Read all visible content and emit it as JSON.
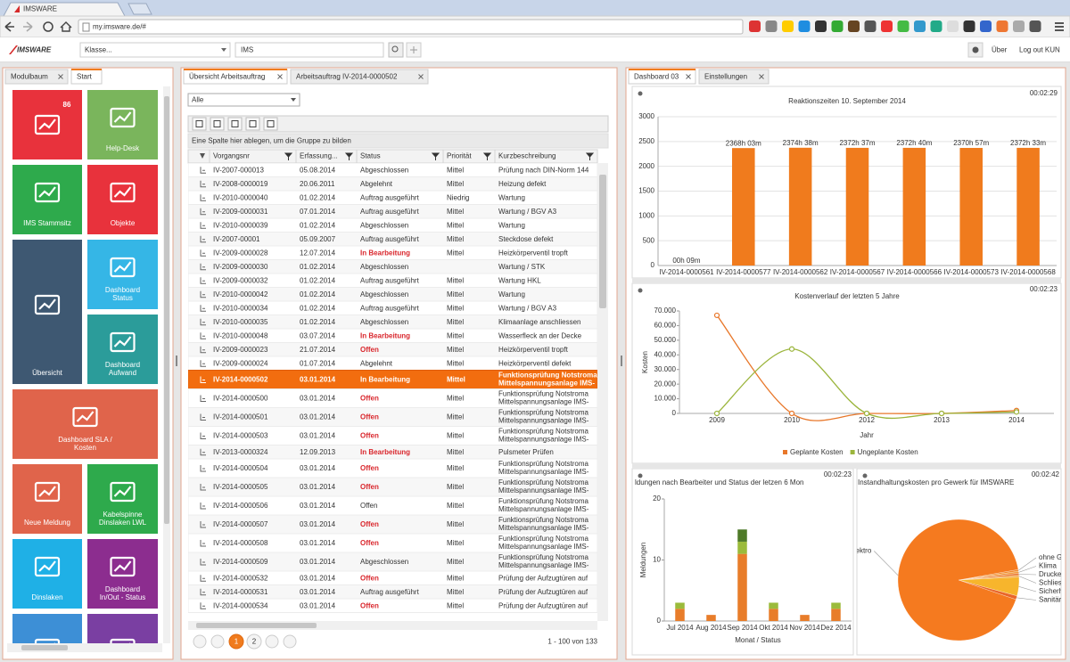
{
  "browser": {
    "tab": "IMSWARE",
    "url": "my.imsware.de/#"
  },
  "app": {
    "logo": "IMSWARE",
    "class_placeholder": "Klasse...",
    "search": "IMS",
    "about": "Über",
    "logout": "Log out KUN"
  },
  "left_panel": {
    "tabs": [
      "Modulbaum",
      "Start"
    ],
    "tiles": [
      {
        "lines": [],
        "badge": 86,
        "color": "#e8323c"
      },
      {
        "lines": [
          "Help-Desk"
        ],
        "color": "#7ab55c"
      },
      {
        "lines": [
          "IMS Stammsitz"
        ],
        "color": "#2eaa4c"
      },
      {
        "lines": [
          "Objekte"
        ],
        "color": "#e8323c"
      },
      {
        "lines": [
          "Übersicht"
        ],
        "color": "#3e5872"
      },
      {
        "lines": [
          "Dashboard",
          "Status"
        ],
        "color": "#35b6e6"
      },
      {
        "lines": [
          "Dashboard",
          "Aufwand"
        ],
        "color": "#2b9c9a"
      },
      {
        "lines": [
          "Dashboard SLA /",
          "Kosten"
        ],
        "color": "#e0644b"
      },
      {
        "lines": [
          "Neue Meldung"
        ],
        "color": "#e0644b"
      },
      {
        "lines": [
          "Kabelspinne",
          "Dinslaken LWL"
        ],
        "color": "#2eaa4c"
      },
      {
        "lines": [
          "Dinslaken"
        ],
        "color": "#1fb0e6"
      },
      {
        "lines": [
          "Dashboard",
          "In/Out - Status"
        ],
        "color": "#8c2d8f"
      },
      {
        "lines": [],
        "color": "#3d8fd6"
      },
      {
        "lines": [],
        "color": "#7a3fa2"
      }
    ]
  },
  "middle_panel": {
    "tabs": [
      "Übersicht Arbeitsauftrag",
      "Arbeitsauftrag IV-2014-0000502"
    ],
    "filter": "Alle",
    "group_hint": "Eine Spalte hier ablegen, um die Gruppe zu bilden",
    "table": {
      "columns": [
        "Vorgangsnr",
        "Erfassung...",
        "Status",
        "Priorität",
        "Kurzbeschreibung"
      ],
      "selected_row": 15,
      "rows": [
        [
          "IV-2007-000013",
          "05.08.2014",
          "Abgeschlossen",
          "Mittel",
          [
            "Prüfung nach DIN-Norm 144"
          ],
          false
        ],
        [
          "IV-2008-0000019",
          "20.06.2011",
          "Abgelehnt",
          "Mittel",
          [
            "Heizung defekt"
          ],
          false
        ],
        [
          "IV-2010-0000040",
          "01.02.2014",
          "Auftrag ausgeführt",
          "Niedrig",
          [
            "Wartung"
          ],
          false
        ],
        [
          "IV-2009-0000031",
          "07.01.2014",
          "Auftrag ausgeführt",
          "Mittel",
          [
            "Wartung / BGV A3"
          ],
          false
        ],
        [
          "IV-2010-0000039",
          "01.02.2014",
          "Abgeschlossen",
          "Mittel",
          [
            "Wartung"
          ],
          false
        ],
        [
          "IV-2007-00001",
          "05.09.2007",
          "Auftrag ausgeführt",
          "Mittel",
          [
            "Steckdose defekt"
          ],
          false
        ],
        [
          "IV-2009-0000028",
          "12.07.2014",
          "In Bearbeitung",
          "Mittel",
          [
            "Heizkörperventil tropft"
          ],
          true
        ],
        [
          "IV-2009-0000030",
          "01.02.2014",
          "Abgeschlossen",
          null,
          [
            "Wartung / STK"
          ],
          false
        ],
        [
          "IV-2009-0000032",
          "01.02.2014",
          "Auftrag ausgeführt",
          "Mittel",
          [
            "Wartung HKL"
          ],
          false
        ],
        [
          "IV-2010-0000042",
          "01.02.2014",
          "Abgeschlossen",
          "Mittel",
          [
            "Wartung"
          ],
          false
        ],
        [
          "IV-2010-0000034",
          "01.02.2014",
          "Auftrag ausgeführt",
          "Mittel",
          [
            "Wartung / BGV A3"
          ],
          false
        ],
        [
          "IV-2010-0000035",
          "01.02.2014",
          "Abgeschlossen",
          "Mittel",
          [
            "Klimaanlage anschliessen"
          ],
          false
        ],
        [
          "IV-2010-0000048",
          "03.07.2014",
          "In Bearbeitung",
          "Mittel",
          [
            "Wasserfleck an der Decke"
          ],
          true
        ],
        [
          "IV-2009-0000023",
          "21.07.2014",
          "Offen",
          "Mittel",
          [
            "Heizkörperventil tropft"
          ],
          true
        ],
        [
          "IV-2009-0000024",
          "01.07.2014",
          "Abgelehnt",
          "Mittel",
          [
            "Heizkörperventil defekt"
          ],
          false
        ],
        [
          "IV-2014-0000502",
          "03.01.2014",
          "In Bearbeitung",
          "Mittel",
          [
            "Funktionsprüfung Notstroma",
            "Mittelspannungsanlage IMS-"
          ],
          true
        ],
        [
          "IV-2014-0000500",
          "03.01.2014",
          "Offen",
          "Mittel",
          [
            "Funktionsprüfung Notstroma",
            "Mittelspannungsanlage IMS-"
          ],
          true
        ],
        [
          "IV-2014-0000501",
          "03.01.2014",
          "Offen",
          "Mittel",
          [
            "Funktionsprüfung Notstroma",
            "Mittelspannungsanlage IMS-"
          ],
          true
        ],
        [
          "IV-2014-0000503",
          "03.01.2014",
          "Offen",
          "Mittel",
          [
            "Funktionsprüfung Notstroma",
            "Mittelspannungsanlage IMS-"
          ],
          true
        ],
        [
          "IV-2013-0000324",
          "12.09.2013",
          "In Bearbeitung",
          "Mittel",
          [
            "Pulsmeter Prüfen"
          ],
          true
        ],
        [
          "IV-2014-0000504",
          "03.01.2014",
          "Offen",
          "Mittel",
          [
            "Funktionsprüfung Notstroma",
            "Mittelspannungsanlage IMS-"
          ],
          true
        ],
        [
          "IV-2014-0000505",
          "03.01.2014",
          "Offen",
          "Mittel",
          [
            "Funktionsprüfung Notstroma",
            "Mittelspannungsanlage IMS-"
          ],
          true
        ],
        [
          "IV-2014-0000506",
          "03.01.2014",
          "Offen",
          "Mittel",
          [
            "Funktionsprüfung Notstroma",
            "Mittelspannungsanlage IMS-"
          ],
          false
        ],
        [
          "IV-2014-0000507",
          "03.01.2014",
          "Offen",
          "Mittel",
          [
            "Funktionsprüfung Notstroma",
            "Mittelspannungsanlage IMS-"
          ],
          true
        ],
        [
          "IV-2014-0000508",
          "03.01.2014",
          "Offen",
          "Mittel",
          [
            "Funktionsprüfung Notstroma",
            "Mittelspannungsanlage IMS-"
          ],
          true
        ],
        [
          "IV-2014-0000509",
          "03.01.2014",
          "Abgeschlossen",
          "Mittel",
          [
            "Funktionsprüfung Notstroma",
            "Mittelspannungsanlage IMS-"
          ],
          false
        ],
        [
          "IV-2014-0000532",
          "03.01.2014",
          "Offen",
          "Mittel",
          [
            "Prüfung der Aufzugtüren auf"
          ],
          true
        ],
        [
          "IV-2014-0000531",
          "03.01.2014",
          "Auftrag ausgeführt",
          "Mittel",
          [
            "Prüfung der Aufzugtüren auf"
          ],
          false
        ],
        [
          "IV-2014-0000534",
          "03.01.2014",
          "Offen",
          "Mittel",
          [
            "Prüfung der Aufzugtüren auf"
          ],
          true
        ]
      ]
    },
    "pagination": {
      "pages": [
        1,
        2
      ],
      "range": "1 - 100 von 133"
    }
  },
  "right_panel": {
    "tabs": [
      "Dashboard 03",
      "Einstellungen"
    ],
    "widget_times": [
      "00:02:29",
      "00:02:23",
      "00:02:23",
      "00:02:42"
    ]
  },
  "chart_data": [
    {
      "type": "bar",
      "title": "Reaktionszeiten 10. September 2014",
      "categories": [
        "IV-2014-0000561",
        "IV-2014-0000577",
        "IV-2014-0000562",
        "IV-2014-0000567",
        "IV-2014-0000566",
        "IV-2014-0000573",
        "IV-2014-0000568"
      ],
      "values": [
        0.15,
        2368.05,
        2374.63,
        2372.62,
        2372.67,
        2370.95,
        2372.55
      ],
      "value_labels": [
        "00h 09m",
        "2368h 03m",
        "2374h 38m",
        "2372h 37m",
        "2372h 40m",
        "2370h 57m",
        "2372h 33m"
      ],
      "color": "#f07b1d",
      "ylim": [
        0,
        3000
      ],
      "yticks": [
        0,
        500,
        1000,
        1500,
        2000,
        2500,
        3000
      ],
      "grid": true
    },
    {
      "type": "line",
      "title": "Kostenverlauf der letzten 5 Jahre",
      "ylabel": "Kosten",
      "xlabel": "Jahr",
      "categories": [
        "2009",
        "2010",
        "2012",
        "2013",
        "2014"
      ],
      "series": [
        {
          "name": "Geplante Kosten",
          "color": "#e8772a",
          "values": [
            67000,
            0,
            0,
            0,
            2000
          ]
        },
        {
          "name": "Ungeplante Kosten",
          "color": "#9bb53c",
          "values": [
            0,
            44000,
            0,
            0,
            1000
          ]
        }
      ],
      "ylim": [
        0,
        70000
      ],
      "yticks": [
        0,
        {
          "value": 10000,
          "label": "10.000"
        },
        {
          "value": 20000,
          "label": "20.000"
        },
        {
          "value": 30000,
          "label": "30.000"
        },
        {
          "value": 40000,
          "label": "40.000"
        },
        {
          "value": 50000,
          "label": "50.000"
        },
        {
          "value": 60000,
          "label": "60.000"
        },
        {
          "value": 70000,
          "label": "70.000"
        }
      ],
      "grid": false,
      "legend": "bottom"
    },
    {
      "type": "bar",
      "title": "ldungen nach Bearbeiter und Status der letzen 6 Mon",
      "ylabel": "Meldungen",
      "xlabel": "Monat / Status",
      "categories": [
        "Jul 2014",
        "Aug 2014",
        "Sep 2014",
        "Okt 2014",
        "Nov 2014",
        "Dez 2014"
      ],
      "series": [
        {
          "color": "#e87d2a",
          "values": [
            2,
            1,
            11,
            2,
            1,
            2
          ]
        },
        {
          "color": "#9bbb3b",
          "values": [
            1,
            0,
            2,
            1,
            0,
            1
          ]
        },
        {
          "color": "#4f7a28",
          "values": [
            0,
            0,
            2,
            0,
            0,
            0
          ]
        }
      ],
      "stacked": true,
      "ylim": [
        0,
        20
      ],
      "yticks": [
        0,
        10,
        20
      ],
      "grid": false
    },
    {
      "type": "pie",
      "title": "Instandhaltungskosten pro Gewerk für IMSWARE",
      "categories": [
        "ohne Ge",
        "Klima",
        "Drucker",
        "Schliess",
        "Sicherhe",
        "Sanitär",
        "Elektro"
      ],
      "values": [
        0.5,
        0.5,
        0.5,
        0.5,
        5,
        1,
        92
      ],
      "colors": [
        "#f08a2c",
        "#f29a3a",
        "#e8702a",
        "#f3a64a",
        "#f7b52c",
        "#e9662a",
        "#f57a1f"
      ]
    }
  ]
}
